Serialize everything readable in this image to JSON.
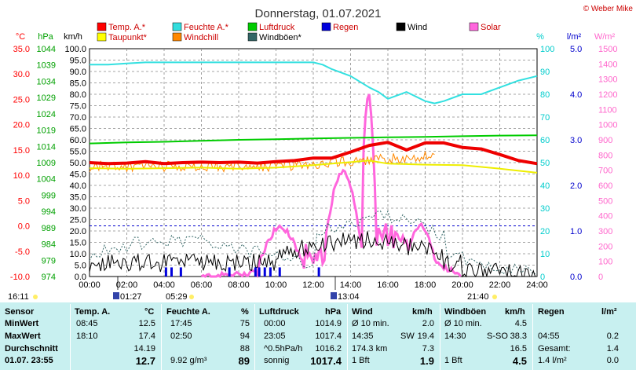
{
  "copyright": "© Weber Mike",
  "chart_data": {
    "type": "line",
    "title": "Donnerstag, 01.07.2021",
    "x_ticks": [
      "00:00",
      "02:00",
      "04:00",
      "06:00",
      "08:00",
      "10:00",
      "12:00",
      "14:00",
      "16:00",
      "18:00",
      "20:00",
      "22:00",
      "24:00"
    ],
    "xlim": [
      0,
      24
    ],
    "axes": {
      "temp": {
        "unit": "°C",
        "min": -10,
        "max": 35,
        "ticks": [
          "35.0",
          "30.0",
          "25.0",
          "20.0",
          "15.0",
          "10.0",
          "5.0",
          "0.0",
          "-5.0",
          "-10.0"
        ],
        "color": "#ff0000"
      },
      "pressure": {
        "unit": "hPa",
        "min": 974,
        "max": 1044,
        "ticks": [
          "1044",
          "1039",
          "1034",
          "1029",
          "1024",
          "1019",
          "1014",
          "1009",
          "1004",
          "999",
          "994",
          "989",
          "984",
          "979",
          "974"
        ],
        "color": "#00a000"
      },
      "wind": {
        "unit": "km/h",
        "min": 0,
        "max": 100,
        "ticks": [
          "100.0",
          "95.0",
          "90.0",
          "85.0",
          "80.0",
          "75.0",
          "70.0",
          "65.0",
          "60.0",
          "55.0",
          "50.0",
          "45.0",
          "40.0",
          "35.0",
          "30.0",
          "25.0",
          "20.0",
          "15.0",
          "10.0",
          "5.0",
          "0.0"
        ],
        "color": "#000000"
      },
      "humidity": {
        "unit": "%",
        "min": 0,
        "max": 100,
        "ticks": [
          "100",
          "90",
          "80",
          "70",
          "60",
          "50",
          "40",
          "30",
          "20",
          "10",
          "0"
        ],
        "color": "#00cccc"
      },
      "rain": {
        "unit": "l/m²",
        "min": 0,
        "max": 5,
        "ticks": [
          "5.0",
          "4.0",
          "3.0",
          "2.0",
          "1.0",
          "0.0"
        ],
        "color": "#0000cc"
      },
      "solar": {
        "unit": "W/m²",
        "min": 0,
        "max": 1500,
        "ticks": [
          "1500",
          "1400",
          "1300",
          "1200",
          "1100",
          "1000",
          "900",
          "800",
          "700",
          "600",
          "500",
          "400",
          "300",
          "200",
          "100",
          "0"
        ],
        "color": "#ff66cc"
      }
    },
    "legend": [
      {
        "name": "Temp. A.*",
        "color": "#ff0000"
      },
      {
        "name": "Feuchte A.*",
        "color": "#33dddd"
      },
      {
        "name": "Luftdruck",
        "color": "#00cc00"
      },
      {
        "name": "Regen",
        "color": "#0000dd"
      },
      {
        "name": "Wind",
        "color": "#000000"
      },
      {
        "name": "Solar",
        "color": "#ff66dd"
      },
      {
        "name": "Taupunkt*",
        "color": "#ffff00"
      },
      {
        "name": "Windchill",
        "color": "#ff8800"
      },
      {
        "name": "Windböen*",
        "color": "#336666"
      }
    ],
    "series": [
      {
        "key": "temp",
        "axis": "temp",
        "color": "#ee0000",
        "width": 4,
        "x": [
          0,
          1,
          2,
          3,
          4,
          5,
          6,
          7,
          8,
          9,
          10,
          11,
          12,
          13,
          14,
          15,
          16,
          17,
          18,
          19,
          20,
          21,
          22,
          23,
          24
        ],
        "y": [
          12.5,
          12.3,
          12.4,
          12.7,
          12.3,
          12.5,
          12.6,
          12.5,
          12.6,
          12.4,
          12.7,
          12.9,
          13.4,
          13.4,
          14.6,
          15.9,
          16.5,
          15.0,
          16.4,
          16.4,
          15.5,
          15.2,
          14.1,
          12.9,
          12.3
        ]
      },
      {
        "key": "humidity",
        "axis": "humidity",
        "color": "#33e0e0",
        "width": 2,
        "x": [
          0,
          1,
          2,
          3,
          4,
          5,
          6,
          7,
          8,
          9,
          10,
          11,
          12,
          12.5,
          13,
          14,
          15,
          15.5,
          16,
          17,
          18,
          18.5,
          19,
          20,
          21,
          22,
          23,
          24
        ],
        "y": [
          93,
          93,
          93.5,
          94,
          94,
          94,
          94,
          94,
          94,
          94,
          94,
          94,
          94,
          93,
          91,
          88,
          83,
          81,
          78,
          81,
          77,
          76,
          77,
          80,
          80,
          83,
          86,
          88
        ]
      },
      {
        "key": "dewpoint",
        "axis": "temp",
        "color": "#eeee00",
        "width": 2,
        "x": [
          0,
          2,
          4,
          6,
          8,
          10,
          12,
          13,
          14,
          15,
          16,
          18,
          20,
          22,
          24
        ],
        "y": [
          11.4,
          11.3,
          11.4,
          11.5,
          11.3,
          11.5,
          12.0,
          12.3,
          12.6,
          12.9,
          12.3,
          12.1,
          12.0,
          11.3,
          10.5
        ]
      },
      {
        "key": "pressure",
        "axis": "pressure",
        "color": "#00cc00",
        "width": 2,
        "x": [
          0,
          2,
          4,
          6,
          8,
          10,
          12,
          14,
          16,
          18,
          20,
          22,
          24
        ],
        "y": [
          1014.9,
          1015.2,
          1015.4,
          1015.7,
          1016.0,
          1016.2,
          1016.4,
          1016.6,
          1016.8,
          1016.9,
          1017.1,
          1017.3,
          1017.4
        ]
      }
    ],
    "windchill_note": "noisy orange trace around temperature",
    "solar_peak": 1210,
    "rain_times": [
      4.1,
      4.4,
      4.9,
      7.5,
      8.9,
      9.1,
      9.4,
      9.7,
      10.2,
      12.3
    ],
    "markers": {
      "sunrise": "01:27",
      "sunset": "21:40",
      "moonrise": "05:29",
      "moonset": "13:04",
      "left": "16:11"
    }
  },
  "table": {
    "headers": {
      "sensor": "Sensor",
      "temp": "Temp. A.",
      "temp_unit": "°C",
      "hum": "Feuchte A.",
      "hum_unit": "%",
      "press": "Luftdruck",
      "press_unit": "hPa",
      "wind": "Wind",
      "wind_unit": "km/h",
      "gust": "Windböen",
      "gust_unit": "km/h",
      "rain": "Regen",
      "rain_unit": "l/m²"
    },
    "rows": [
      {
        "label": "MinWert",
        "temp_time": "08:45",
        "temp_val": "12.5",
        "hum_time": "17:45",
        "hum_val": "75",
        "press_time": "00:00",
        "press_val": "1014.9",
        "wind_desc": "Ø 10 min.",
        "wind_dir": "",
        "wind_val": "2.0",
        "gust_desc": "Ø 10 min.",
        "gust_dir": "",
        "gust_val": "4.5",
        "rain_desc": "",
        "rain_val": ""
      },
      {
        "label": "MaxWert",
        "temp_time": "18:10",
        "temp_val": "17.4",
        "hum_time": "02:50",
        "hum_val": "94",
        "press_time": "23:05",
        "press_val": "1017.4",
        "wind_desc": "14:35",
        "wind_dir": "SW",
        "wind_val": "19.4",
        "gust_desc": "14:30",
        "gust_dir": "S-SO",
        "gust_val": "38.3",
        "rain_desc": "04:55",
        "rain_val": "0.2"
      },
      {
        "label": "Durchschnitt",
        "temp_time": "",
        "temp_val": "14.19",
        "hum_time": "",
        "hum_val": "88",
        "press_time": "^0.5hPa/h",
        "press_val": "1016.2",
        "wind_desc": "174.3 km",
        "wind_dir": "",
        "wind_val": "7.3",
        "gust_desc": "",
        "gust_dir": "",
        "gust_val": "16.5",
        "rain_desc": "Gesamt:",
        "rain_val": "1.4"
      },
      {
        "label": "01.07. 23:55",
        "temp_time": "",
        "temp_val": "12.7",
        "hum_time": "9.92 g/m³",
        "hum_val": "89",
        "press_time": "sonnig",
        "press_val": "1017.4",
        "wind_desc": "1 Bft",
        "wind_dir": "",
        "wind_val": "1.9",
        "gust_desc": "1 Bft",
        "gust_dir": "",
        "gust_val": "4.5",
        "rain_desc": "1.4 l/m²",
        "rain_val": "0.0"
      }
    ]
  }
}
